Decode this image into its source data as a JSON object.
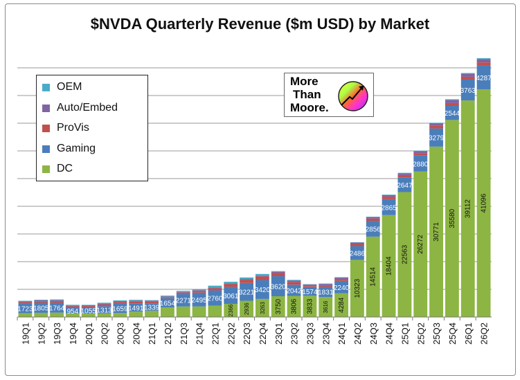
{
  "chart_data": {
    "type": "bar",
    "stacked": true,
    "title": "$NVDA Quarterly Revenue ($m USD) by Market",
    "xlabel": "",
    "ylabel": "",
    "ylim": [
      0,
      48000
    ],
    "grid": true,
    "legend_position": "top-left",
    "categories": [
      "19Q1",
      "19Q2",
      "19Q3",
      "19Q4",
      "20Q1",
      "20Q2",
      "20Q3",
      "20Q4",
      "21Q1",
      "21Q2",
      "21Q3",
      "21Q4",
      "22Q1",
      "22Q2",
      "22Q3",
      "22Q4",
      "23Q1",
      "23Q2",
      "23Q3",
      "23Q4",
      "24Q1",
      "24Q2",
      "24Q3",
      "24Q4",
      "25Q1",
      "25Q2",
      "25Q3",
      "25Q4",
      "26Q1",
      "26Q2"
    ],
    "series": [
      {
        "name": "DC",
        "color": "#8db543",
        "values": [
          701,
          760,
          792,
          679,
          634,
          655,
          726,
          968,
          1141,
          1752,
          1900,
          1903,
          2048,
          2366,
          2936,
          3263,
          3750,
          3806,
          3833,
          3616,
          4284,
          10323,
          14514,
          18404,
          22563,
          26272,
          30771,
          35580,
          39112,
          41096
        ],
        "labels": [
          "",
          "",
          "",
          "",
          "",
          "",
          "",
          "",
          "",
          "",
          "",
          "",
          "",
          "2366",
          "2936",
          "3263",
          "3750",
          "3806",
          "3833",
          "3616",
          "4284",
          "10323",
          "14514",
          "18404",
          "22563",
          "26272",
          "30771",
          "35580",
          "39112",
          "41096"
        ]
      },
      {
        "name": "Gaming",
        "color": "#4a7ebb",
        "values": [
          1723,
          1805,
          1764,
          954,
          1055,
          1313,
          1659,
          1491,
          1339,
          1654,
          2271,
          2495,
          2760,
          3061,
          3221,
          3420,
          3620,
          2042,
          1574,
          1831,
          2240,
          2486,
          2856,
          2865,
          2647,
          2880,
          3279,
          2544,
          3763,
          4287
        ],
        "labels": [
          "1723",
          "1805",
          "1764",
          "954",
          "1055",
          "1313",
          "1659",
          "1491",
          "1339",
          "1654",
          "2271",
          "2495",
          "2760",
          "3061",
          "3221",
          "3420",
          "3620",
          "2042",
          "1574",
          "1831",
          "2240",
          "2486",
          "2856",
          "2865",
          "2647",
          "2880",
          "3279",
          "2544",
          "3763",
          "4287"
        ]
      },
      {
        "name": "ProVis",
        "color": "#c0504d",
        "values": [
          251,
          281,
          305,
          293,
          266,
          291,
          324,
          331,
          307,
          203,
          236,
          307,
          372,
          519,
          577,
          643,
          622,
          496,
          200,
          226,
          295,
          379,
          416,
          463,
          427,
          454,
          486,
          511,
          509,
          601
        ]
      },
      {
        "name": "Auto/Embed",
        "color": "#8064a2",
        "values": [
          145,
          161,
          172,
          163,
          166,
          209,
          162,
          163,
          155,
          111,
          125,
          145,
          154,
          152,
          135,
          125,
          138,
          220,
          251,
          294,
          296,
          253,
          261,
          281,
          329,
          346,
          449,
          570,
          567,
          586
        ]
      },
      {
        "name": "OEM",
        "color": "#4bacc6",
        "values": [
          113,
          116,
          148,
          116,
          78,
          111,
          133,
          152,
          100,
          145,
          194,
          180,
          327,
          266,
          275,
          324,
          158,
          140,
          73,
          84,
          77,
          66,
          73,
          90,
          78,
          88,
          97,
          126,
          111,
          173
        ]
      }
    ]
  },
  "legend_order": [
    "OEM",
    "Auto/Embed",
    "ProVis",
    "Gaming",
    "DC"
  ],
  "logo": {
    "text_lines": [
      "More",
      "Than",
      "Moore."
    ]
  }
}
